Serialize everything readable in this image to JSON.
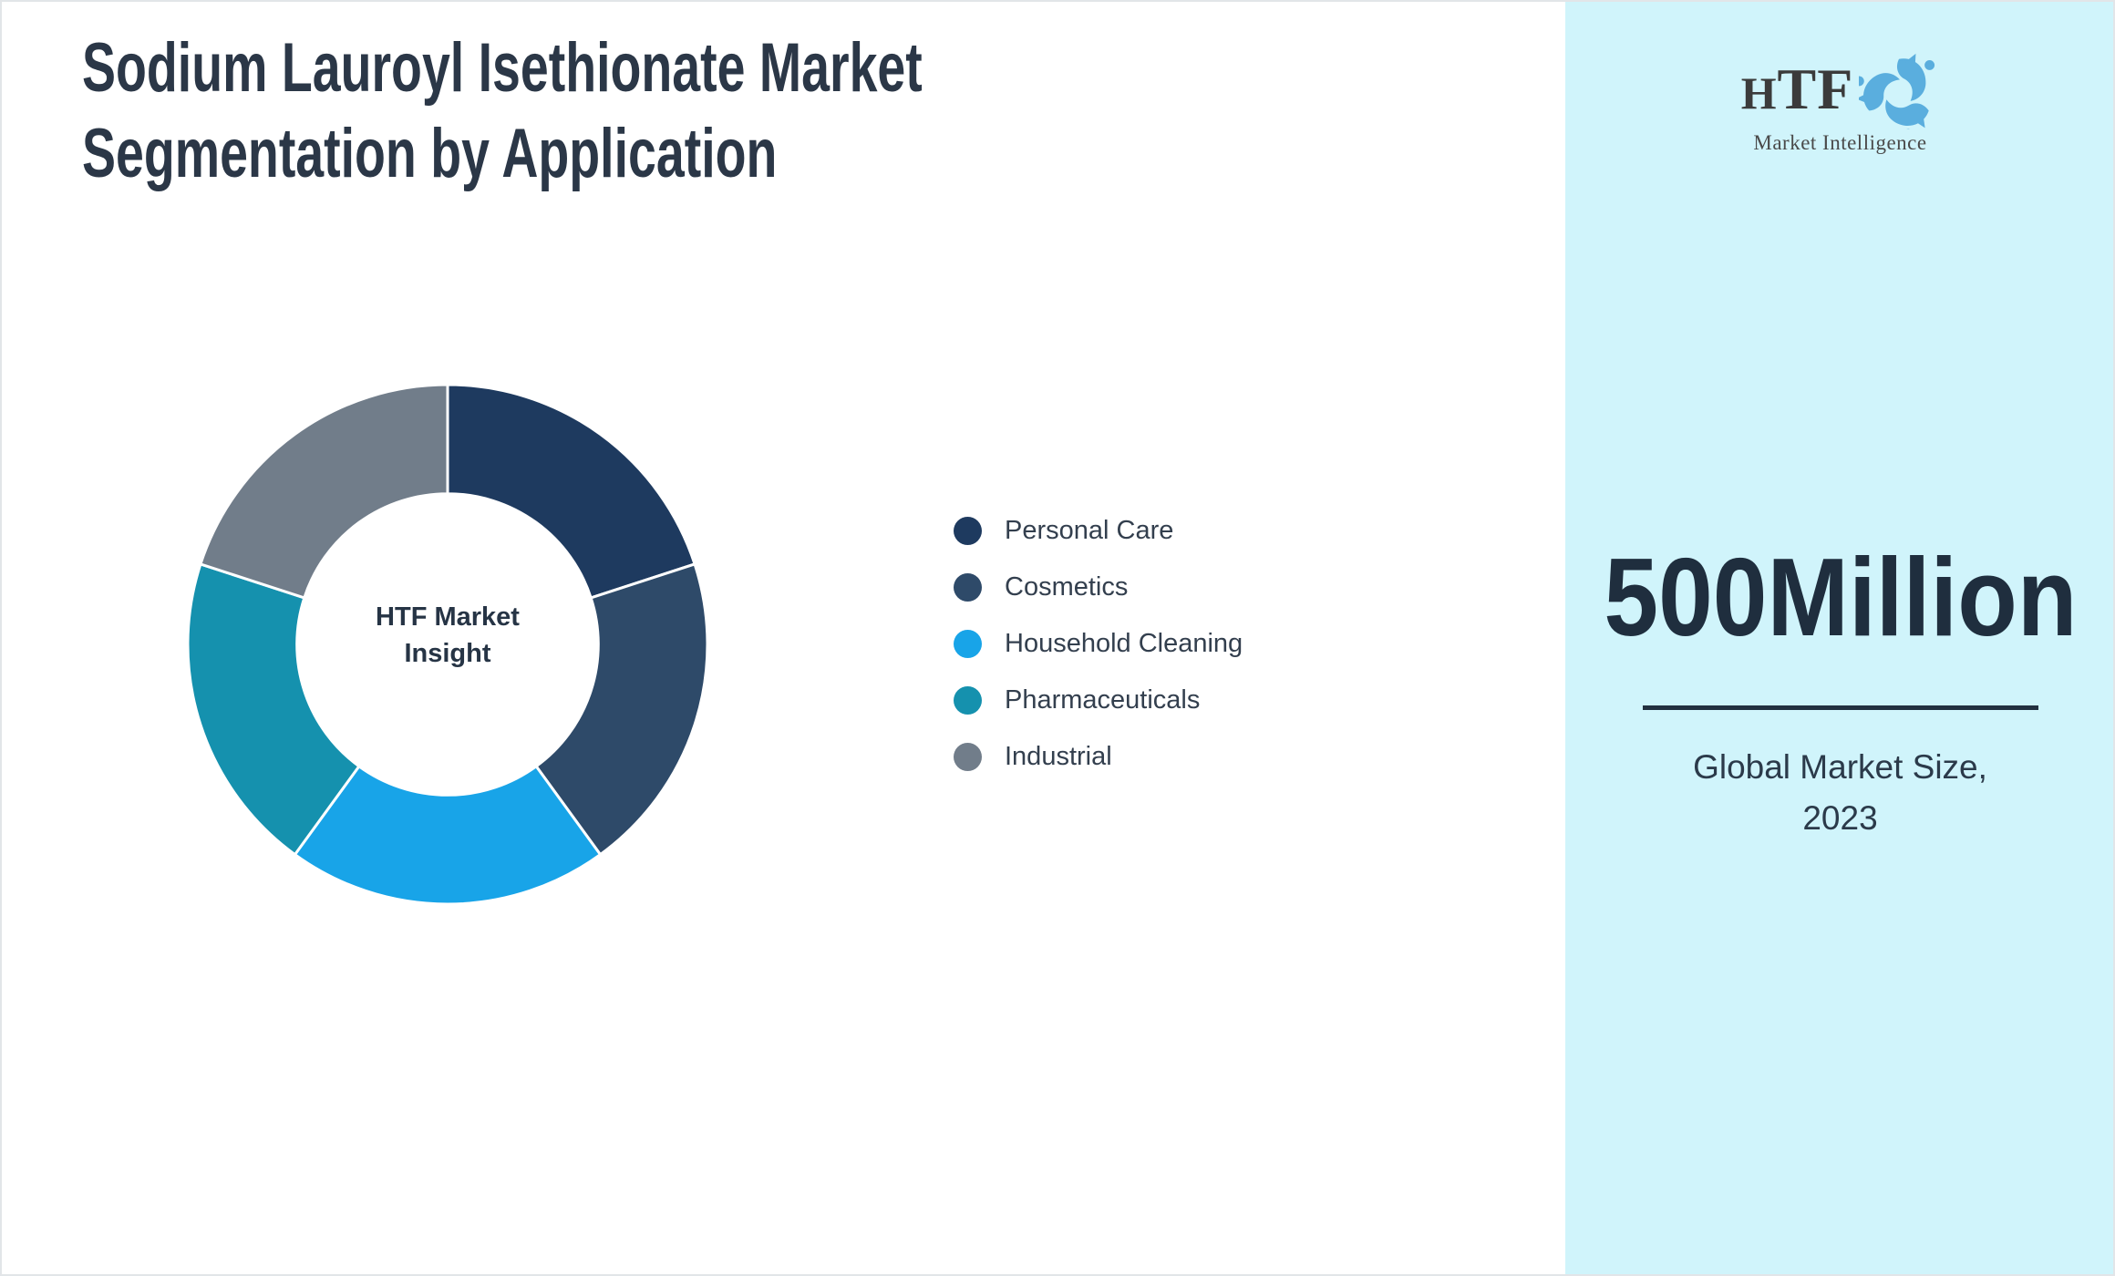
{
  "page": {
    "title_lines": [
      "Sodium Lauroyl Isethionate Market",
      "Segmentation by Application"
    ],
    "title_color": "#2b3747",
    "background": "#ffffff",
    "border_color": "#e2e5e8"
  },
  "chart_data": {
    "type": "pie",
    "subtype": "donut",
    "title": "",
    "center_label_lines": [
      "HTF Market",
      "Insight"
    ],
    "start_angle_deg": 0,
    "direction": "clockwise",
    "legend_position": "right",
    "inner_radius_ratio": 0.58,
    "note": "No numeric labels are rendered in the chart; the five slices are visually equal (~72 degrees each, i.e. ~20% per slice).",
    "categories": [
      "Personal Care",
      "Cosmetics",
      "Household Cleaning",
      "Pharmaceuticals",
      "Industrial"
    ],
    "values": [
      20,
      20,
      20,
      20,
      20
    ],
    "values_unit": "percent (estimated)",
    "segments": [
      {
        "label": "Personal Care",
        "value": 20,
        "color": "#1e3a5f"
      },
      {
        "label": "Cosmetics",
        "value": 20,
        "color": "#2e4a69"
      },
      {
        "label": "Household Cleaning",
        "value": 20,
        "color": "#18a4e8"
      },
      {
        "label": "Pharmaceuticals",
        "value": 20,
        "color": "#1591ae"
      },
      {
        "label": "Industrial",
        "value": 20,
        "color": "#717d8a"
      }
    ],
    "slice_border_color": "#ffffff"
  },
  "sidebar": {
    "background": "#d0f4fb",
    "logo": {
      "text": "HTF",
      "subtext": "Market Intelligence",
      "text_color": "#3b3b3b",
      "dolphin_colors": [
        "#5aaede",
        "#3f7ba3",
        "#b2bfca"
      ]
    },
    "market_size_value": "500Million",
    "caption_lines": [
      "Global Market Size,",
      "2023"
    ],
    "value_color": "#1f2e3e",
    "divider_color": "#22303f"
  }
}
